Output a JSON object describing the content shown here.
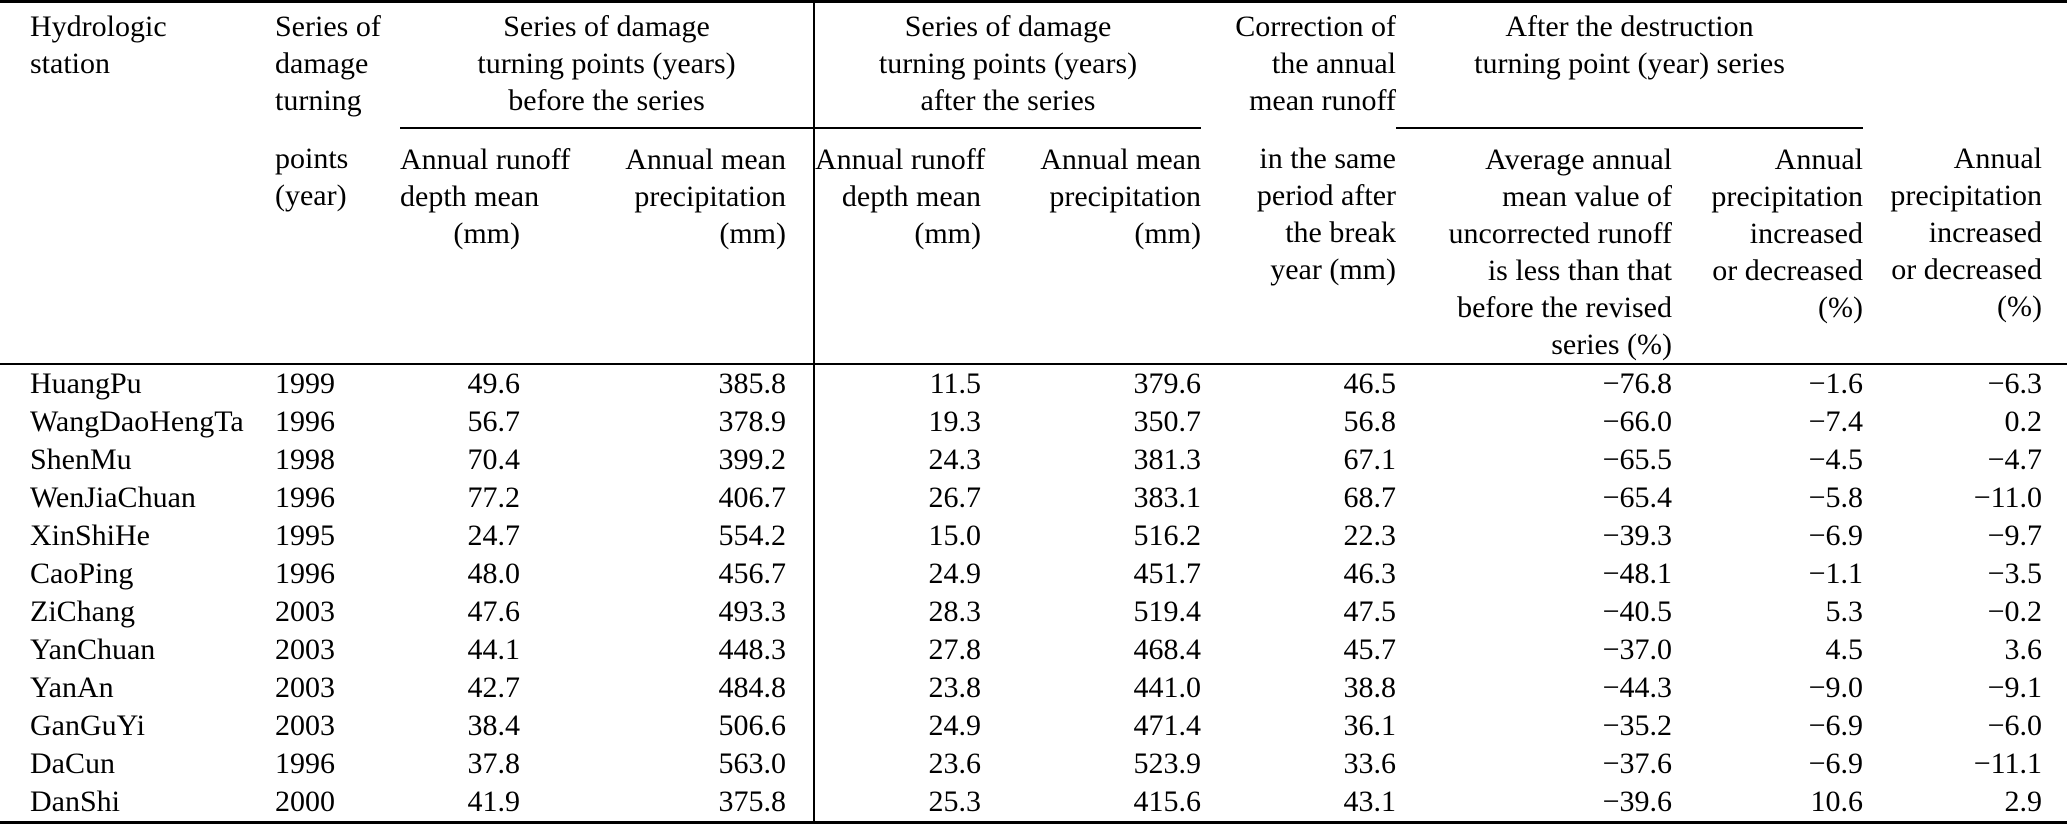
{
  "table": {
    "title_context": "Hydrologic station damage turning point table",
    "column_keys": [
      "station",
      "turning_point_year",
      "runoff_depth_before_mm",
      "precip_before_mm",
      "runoff_depth_after_mm",
      "precip_after_mm",
      "correction_mm",
      "uncorrected_runoff_pct",
      "precip_change_pct",
      "precip_change_last_pct"
    ],
    "header": {
      "station_title": [
        "Hydrologic",
        "station"
      ],
      "turning_top": [
        "Series of",
        "damage",
        "turning"
      ],
      "turning_bottom": [
        "points",
        "(year)"
      ],
      "group_before": [
        "Series of damage",
        "turning points (years)",
        "before the series"
      ],
      "group_after": [
        "Series of damage",
        "turning points (years)",
        "after the series"
      ],
      "correction_top": [
        "Correction of",
        "the annual",
        "mean runoff"
      ],
      "correction_bottom": [
        "in the same",
        "period after",
        "the break",
        "year (mm)"
      ],
      "group_destruction": [
        "After the destruction",
        "turning point (year) series"
      ],
      "sub_runoff_depth": [
        "Annual runoff",
        "depth mean",
        "(mm)"
      ],
      "sub_precip_mean": [
        "Annual mean",
        "precipitation",
        "(mm)"
      ],
      "sub_uncorrected": [
        "Average annual",
        "mean value of",
        "uncorrected runoff",
        "is less than that",
        "before the revised",
        "series (%)"
      ],
      "sub_precip_change": [
        "Annual",
        "precipitation",
        "increased",
        "or decreased",
        "(%)"
      ]
    },
    "rows": [
      [
        "HuangPu",
        "1999",
        "49.6",
        "385.8",
        "11.5",
        "379.6",
        "46.5",
        "−76.8",
        "−1.6",
        "−6.3"
      ],
      [
        "WangDaoHengTa",
        "1996",
        "56.7",
        "378.9",
        "19.3",
        "350.7",
        "56.8",
        "−66.0",
        "−7.4",
        "0.2"
      ],
      [
        "ShenMu",
        "1998",
        "70.4",
        "399.2",
        "24.3",
        "381.3",
        "67.1",
        "−65.5",
        "−4.5",
        "−4.7"
      ],
      [
        "WenJiaChuan",
        "1996",
        "77.2",
        "406.7",
        "26.7",
        "383.1",
        "68.7",
        "−65.4",
        "−5.8",
        "−11.0"
      ],
      [
        "XinShiHe",
        "1995",
        "24.7",
        "554.2",
        "15.0",
        "516.2",
        "22.3",
        "−39.3",
        "−6.9",
        "−9.7"
      ],
      [
        "CaoPing",
        "1996",
        "48.0",
        "456.7",
        "24.9",
        "451.7",
        "46.3",
        "−48.1",
        "−1.1",
        "−3.5"
      ],
      [
        "ZiChang",
        "2003",
        "47.6",
        "493.3",
        "28.3",
        "519.4",
        "47.5",
        "−40.5",
        "5.3",
        "−0.2"
      ],
      [
        "YanChuan",
        "2003",
        "44.1",
        "448.3",
        "27.8",
        "468.4",
        "45.7",
        "−37.0",
        "4.5",
        "3.6"
      ],
      [
        "YanAn",
        "2003",
        "42.7",
        "484.8",
        "23.8",
        "441.0",
        "38.8",
        "−44.3",
        "−9.0",
        "−9.1"
      ],
      [
        "GanGuYi",
        "2003",
        "38.4",
        "506.6",
        "24.9",
        "471.4",
        "36.1",
        "−35.2",
        "−6.9",
        "−6.0"
      ],
      [
        "DaCun",
        "1996",
        "37.8",
        "563.0",
        "23.6",
        "523.9",
        "33.6",
        "−37.6",
        "−6.9",
        "−11.1"
      ],
      [
        "DanShi",
        "2000",
        "41.9",
        "375.8",
        "25.3",
        "415.6",
        "43.1",
        "−39.6",
        "10.6",
        "2.9"
      ]
    ]
  },
  "chart_data": {
    "type": "table",
    "columns": [
      "Hydrologic station",
      "Series of damage turning points (year)",
      "Before: Annual runoff depth mean (mm)",
      "Before: Annual mean precipitation (mm)",
      "After: Annual runoff depth mean (mm)",
      "After: Annual mean precipitation (mm)",
      "Correction of the annual mean runoff in the same period after the break year (mm)",
      "Average annual mean value of uncorrected runoff is less than that before the revised series (%)",
      "Annual precipitation increased or decreased (%)",
      "Annual precipitation increased or decreased (%)"
    ]
  }
}
